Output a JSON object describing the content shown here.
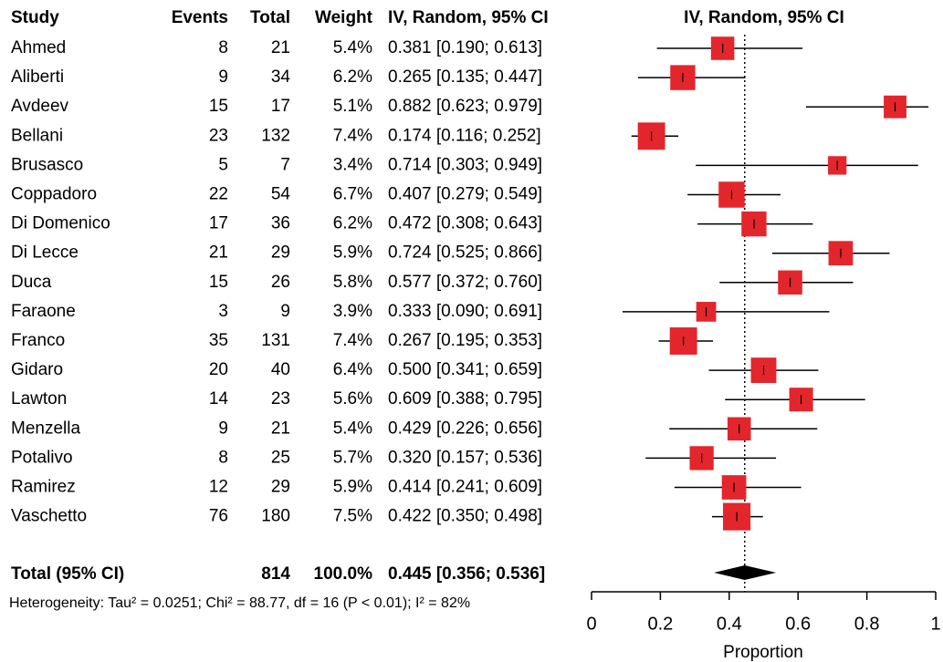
{
  "chart_data": {
    "type": "forest",
    "headers": {
      "study": "Study",
      "events": "Events",
      "total": "Total",
      "weight": "Weight",
      "ci": "IV, Random, 95% CI",
      "plot": "IV, Random, 95% CI"
    },
    "categories": [
      "Ahmed",
      "Aliberti",
      "Avdeev",
      "Bellani",
      "Brusasco",
      "Coppadoro",
      "Di Domenico",
      "Di Lecce",
      "Duca",
      "Faraone",
      "Franco",
      "Gidaro",
      "Lawton",
      "Menzella",
      "Potalivo",
      "Ramirez",
      "Vaschetto"
    ],
    "events": [
      8,
      9,
      15,
      23,
      5,
      22,
      17,
      21,
      15,
      3,
      35,
      20,
      14,
      9,
      8,
      12,
      76
    ],
    "totals": [
      21,
      34,
      17,
      132,
      7,
      54,
      36,
      29,
      26,
      9,
      131,
      40,
      23,
      21,
      25,
      29,
      180
    ],
    "weights": [
      5.4,
      6.2,
      5.1,
      7.4,
      3.4,
      6.7,
      6.2,
      5.9,
      5.8,
      3.9,
      7.4,
      6.4,
      5.6,
      5.4,
      5.7,
      5.9,
      7.5
    ],
    "weight_labels": [
      "5.4%",
      "6.2%",
      "5.1%",
      "7.4%",
      "3.4%",
      "6.7%",
      "6.2%",
      "5.9%",
      "5.8%",
      "3.9%",
      "7.4%",
      "6.4%",
      "5.6%",
      "5.4%",
      "5.7%",
      "5.9%",
      "7.5%"
    ],
    "ci_labels": [
      "0.381 [0.190; 0.613]",
      "0.265 [0.135; 0.447]",
      "0.882 [0.623; 0.979]",
      "0.174 [0.116; 0.252]",
      "0.714 [0.303; 0.949]",
      "0.407 [0.279; 0.549]",
      "0.472 [0.308; 0.643]",
      "0.724 [0.525; 0.866]",
      "0.577 [0.372; 0.760]",
      "0.333 [0.090; 0.691]",
      "0.267 [0.195; 0.353]",
      "0.500 [0.341; 0.659]",
      "0.609 [0.388; 0.795]",
      "0.429 [0.226; 0.656]",
      "0.320 [0.157; 0.536]",
      "0.414 [0.241; 0.609]",
      "0.422 [0.350; 0.498]"
    ],
    "values": [
      0.381,
      0.265,
      0.882,
      0.174,
      0.714,
      0.407,
      0.472,
      0.724,
      0.577,
      0.333,
      0.267,
      0.5,
      0.609,
      0.429,
      0.32,
      0.414,
      0.422
    ],
    "lower": [
      0.19,
      0.135,
      0.623,
      0.116,
      0.303,
      0.279,
      0.308,
      0.525,
      0.372,
      0.09,
      0.195,
      0.341,
      0.388,
      0.226,
      0.157,
      0.241,
      0.35
    ],
    "upper": [
      0.613,
      0.447,
      0.979,
      0.252,
      0.949,
      0.549,
      0.643,
      0.866,
      0.76,
      0.691,
      0.353,
      0.659,
      0.795,
      0.656,
      0.536,
      0.609,
      0.498
    ],
    "total": {
      "label": "Total (95% CI)",
      "total": 814,
      "weight": 100,
      "weight_label": "100.0%",
      "ci_label": "0.445 [0.356; 0.536]",
      "value": 0.445,
      "lower": 0.356,
      "upper": 0.536
    },
    "heterogeneity": "Heterogeneity: Tau² = 0.0251; Chi² = 88.77, df = 16 (P < 0.01); I² = 82%",
    "xlabel": "Proportion",
    "xlim": [
      0,
      1
    ],
    "xticks": [
      0,
      0.2,
      0.4,
      0.6,
      0.8,
      1
    ],
    "color": "#e3262c"
  }
}
